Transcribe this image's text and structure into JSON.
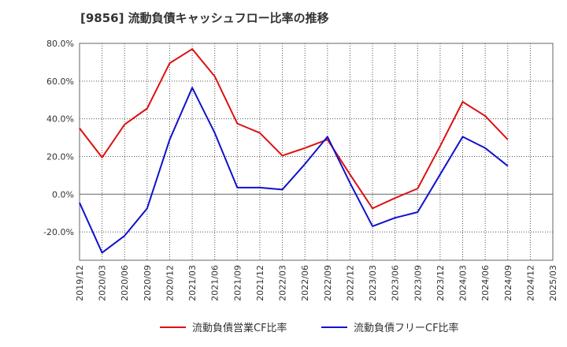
{
  "chart_data": {
    "type": "line",
    "title": "[9856]  流動負債キャッシュフロー比率の推移",
    "xlabel": "",
    "ylabel": "",
    "ylim": [
      -35,
      80
    ],
    "y_ticks": [
      80,
      60,
      40,
      20,
      0,
      -20
    ],
    "y_tick_labels": [
      "80.0%",
      "60.0%",
      "40.0%",
      "20.0%",
      "0.0%",
      "-20.0%"
    ],
    "categories": [
      "2019/12",
      "2020/03",
      "2020/06",
      "2020/09",
      "2020/12",
      "2021/03",
      "2021/06",
      "2021/09",
      "2021/12",
      "2022/03",
      "2022/06",
      "2022/09",
      "2022/12",
      "2023/03",
      "2023/06",
      "2023/09",
      "2023/12",
      "2024/03",
      "2024/06",
      "2024/09",
      "2024/12",
      "2025/03"
    ],
    "grid": true,
    "legend_position": "bottom",
    "series": [
      {
        "name": "流動負債営業CF比率",
        "color": "#dd1111",
        "values": [
          35,
          19.5,
          37,
          45.5,
          69.5,
          77,
          62.5,
          37.5,
          32.5,
          20.5,
          24.5,
          29,
          10.5,
          -7.5,
          -2,
          3,
          25.5,
          49,
          41.5,
          29,
          null,
          null
        ]
      },
      {
        "name": "流動負債フリーCF比率",
        "color": "#1111cc",
        "values": [
          -4.5,
          -31,
          -22,
          -7.5,
          29,
          56.5,
          32.5,
          3.5,
          3.5,
          2.5,
          16,
          30.5,
          6,
          -17,
          -12.5,
          -9.5,
          10.5,
          30.5,
          24.5,
          15,
          null,
          null
        ]
      }
    ]
  }
}
